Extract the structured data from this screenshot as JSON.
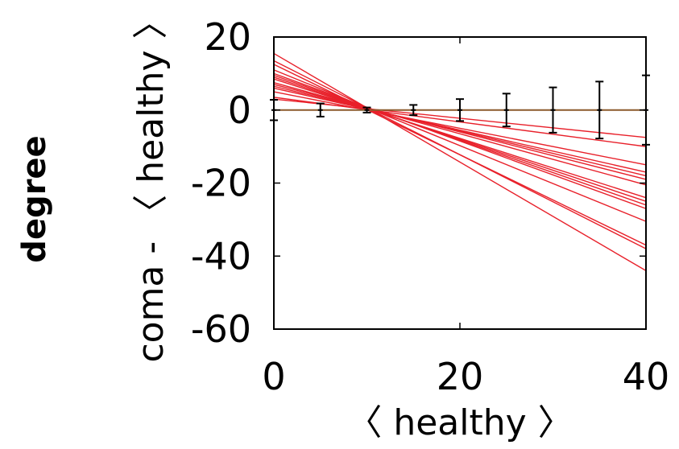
{
  "chart_data": {
    "type": "line",
    "panel_label": "degree",
    "xlabel": "〈 healthy 〉",
    "ylabel": "coma - 〈 healthy 〉",
    "xlim": [
      0,
      40
    ],
    "ylim": [
      -60,
      20
    ],
    "x_ticks": [
      0,
      20,
      40
    ],
    "y_ticks": [
      20,
      0,
      -20,
      -40,
      -60
    ],
    "grid": false,
    "legend": "none",
    "colors": {
      "fit_lines": "#e8202a",
      "zero_line": "#8b5a2b",
      "errorbars": "#000000"
    },
    "zero_line": {
      "y": 0
    },
    "fit_lines": [
      {
        "x": [
          0,
          40
        ],
        "y": [
          15.5,
          -44.0
        ]
      },
      {
        "x": [
          0,
          40
        ],
        "y": [
          13.5,
          -38.0
        ]
      },
      {
        "x": [
          0,
          40
        ],
        "y": [
          12.5,
          -37.0
        ]
      },
      {
        "x": [
          0,
          40
        ],
        "y": [
          11.0,
          -30.5
        ]
      },
      {
        "x": [
          0,
          40
        ],
        "y": [
          10.0,
          -27.0
        ]
      },
      {
        "x": [
          0,
          40
        ],
        "y": [
          9.5,
          -26.0
        ]
      },
      {
        "x": [
          0,
          40
        ],
        "y": [
          9.0,
          -25.0
        ]
      },
      {
        "x": [
          0,
          40
        ],
        "y": [
          8.5,
          -24.0
        ]
      },
      {
        "x": [
          0,
          40
        ],
        "y": [
          7.5,
          -20.5
        ]
      },
      {
        "x": [
          0,
          40
        ],
        "y": [
          7.0,
          -19.0
        ]
      },
      {
        "x": [
          0,
          40
        ],
        "y": [
          6.5,
          -18.0
        ]
      },
      {
        "x": [
          0,
          40
        ],
        "y": [
          6.0,
          -17.0
        ]
      },
      {
        "x": [
          0,
          40
        ],
        "y": [
          5.0,
          -15.0
        ]
      },
      {
        "x": [
          0,
          40
        ],
        "y": [
          3.5,
          -10.0
        ]
      },
      {
        "x": [
          0,
          40
        ],
        "y": [
          3.0,
          -7.5
        ]
      }
    ],
    "errorbars": {
      "x": [
        0,
        5,
        10,
        15,
        20,
        25,
        30,
        35,
        40
      ],
      "y": [
        0,
        0,
        0,
        0,
        0,
        0,
        0,
        0,
        0
      ],
      "err": [
        2.8,
        1.8,
        0.7,
        1.4,
        3.0,
        4.5,
        6.2,
        7.8,
        9.5
      ]
    }
  }
}
